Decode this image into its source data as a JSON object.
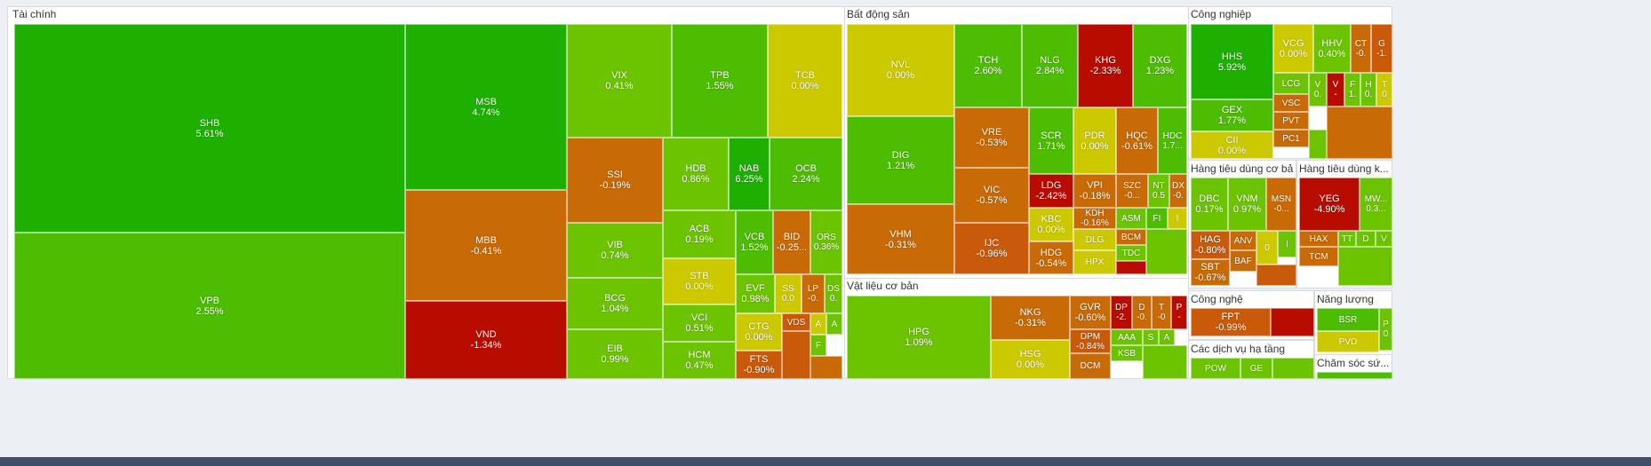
{
  "chart_data": {
    "type": "treemap",
    "title": "",
    "metric": "percent_change",
    "colors": {
      "strong_up": "#1db000",
      "up": "#4cbd00",
      "mild_up": "#6cc400",
      "flat": "#cdc900",
      "mild_down": "#c86a05",
      "down": "#c85a0a",
      "strong_down": "#b80c00"
    },
    "sectors": [
      {
        "name": "Tài chính",
        "stocks": [
          {
            "symbol": "SHB",
            "change": "5.61%",
            "value": 5.61
          },
          {
            "symbol": "VPB",
            "change": "2.55%",
            "value": 2.55
          },
          {
            "symbol": "MSB",
            "change": "4.74%",
            "value": 4.74
          },
          {
            "symbol": "MBB",
            "change": "-0.41%",
            "value": -0.41
          },
          {
            "symbol": "VND",
            "change": "-1.34%",
            "value": -1.34
          },
          {
            "symbol": "VIX",
            "change": "0.41%",
            "value": 0.41
          },
          {
            "symbol": "TPB",
            "change": "1.55%",
            "value": 1.55
          },
          {
            "symbol": "TCB",
            "change": "0.00%",
            "value": 0.0
          },
          {
            "symbol": "SSI",
            "change": "-0.19%",
            "value": -0.19
          },
          {
            "symbol": "HDB",
            "change": "0.86%",
            "value": 0.86
          },
          {
            "symbol": "NAB",
            "change": "6.25%",
            "value": 6.25
          },
          {
            "symbol": "OCB",
            "change": "2.24%",
            "value": 2.24
          },
          {
            "symbol": "VIB",
            "change": "0.74%",
            "value": 0.74
          },
          {
            "symbol": "ACB",
            "change": "0.19%",
            "value": 0.19
          },
          {
            "symbol": "VCB",
            "change": "1.52%",
            "value": 1.52
          },
          {
            "symbol": "BID",
            "change": "-0.25...",
            "value": -0.25
          },
          {
            "symbol": "ORS",
            "change": "0.36%",
            "value": 0.36
          },
          {
            "symbol": "BCG",
            "change": "1.04%",
            "value": 1.04
          },
          {
            "symbol": "STB",
            "change": "0.00%",
            "value": 0.0
          },
          {
            "symbol": "EVF",
            "change": "0.98%",
            "value": 0.98
          },
          {
            "symbol": "SS",
            "change": "0.0",
            "value": 0.0
          },
          {
            "symbol": "LP",
            "change": "-0.",
            "value": -0.1
          },
          {
            "symbol": "DS",
            "change": "0.",
            "value": 0.1
          },
          {
            "symbol": "VCI",
            "change": "0.51%",
            "value": 0.51
          },
          {
            "symbol": "CTG",
            "change": "0.00%",
            "value": 0.0
          },
          {
            "symbol": "VDS",
            "change": "",
            "value": -1.0
          },
          {
            "symbol": "A",
            "change": "",
            "value": 0.0
          },
          {
            "symbol": "A",
            "change": "",
            "value": 0.2
          },
          {
            "symbol": "F",
            "change": "",
            "value": 0.3
          },
          {
            "symbol": "EIB",
            "change": "0.99%",
            "value": 0.99
          },
          {
            "symbol": "HCM",
            "change": "0.47%",
            "value": 0.47
          },
          {
            "symbol": "FTS",
            "change": "-0.90%",
            "value": -0.9
          }
        ]
      },
      {
        "name": "Bất động sản",
        "stocks": [
          {
            "symbol": "NVL",
            "change": "0.00%",
            "value": 0.0
          },
          {
            "symbol": "TCH",
            "change": "2.60%",
            "value": 2.6
          },
          {
            "symbol": "NLG",
            "change": "2.84%",
            "value": 2.84
          },
          {
            "symbol": "KHG",
            "change": "-2.33%",
            "value": -2.33
          },
          {
            "symbol": "DXG",
            "change": "1.23%",
            "value": 1.23
          },
          {
            "symbol": "DIG",
            "change": "1.21%",
            "value": 1.21
          },
          {
            "symbol": "VRE",
            "change": "-0.53%",
            "value": -0.53
          },
          {
            "symbol": "SCR",
            "change": "1.71%",
            "value": 1.71
          },
          {
            "symbol": "PDR",
            "change": "0.00%",
            "value": 0.0
          },
          {
            "symbol": "HQC",
            "change": "-0.61%",
            "value": -0.61
          },
          {
            "symbol": "HDC",
            "change": "1.7...",
            "value": 1.7
          },
          {
            "symbol": "VHM",
            "change": "-0.31%",
            "value": -0.31
          },
          {
            "symbol": "VIC",
            "change": "-0.57%",
            "value": -0.57
          },
          {
            "symbol": "LDG",
            "change": "-2.42%",
            "value": -2.42
          },
          {
            "symbol": "VPI",
            "change": "-0.18%",
            "value": -0.18
          },
          {
            "symbol": "SZC",
            "change": "-0...",
            "value": -0.1
          },
          {
            "symbol": "NT",
            "change": "0.5",
            "value": 0.5
          },
          {
            "symbol": "DX",
            "change": "-0.",
            "value": -0.1
          },
          {
            "symbol": "KBC",
            "change": "0.00%",
            "value": 0.0
          },
          {
            "symbol": "KDH",
            "change": "-0.16%",
            "value": -0.16
          },
          {
            "symbol": "ASM",
            "change": "",
            "value": 0.4
          },
          {
            "symbol": "FI",
            "change": "",
            "value": 1.5
          },
          {
            "symbol": "I",
            "change": "",
            "value": 0.0
          },
          {
            "symbol": "IJC",
            "change": "-0.96%",
            "value": -0.96
          },
          {
            "symbol": "DLG",
            "change": "",
            "value": 0.0
          },
          {
            "symbol": "BCM",
            "change": "",
            "value": -0.3
          },
          {
            "symbol": "HDG",
            "change": "-0.54%",
            "value": -0.54
          },
          {
            "symbol": "TDC",
            "change": "",
            "value": 0.6
          },
          {
            "symbol": "HPX",
            "change": "",
            "value": 0.0
          }
        ]
      },
      {
        "name": "Vật liệu cơ bản",
        "stocks": [
          {
            "symbol": "HPG",
            "change": "1.09%",
            "value": 1.09
          },
          {
            "symbol": "NKG",
            "change": "-0.31%",
            "value": -0.31
          },
          {
            "symbol": "GVR",
            "change": "-0.60%",
            "value": -0.6
          },
          {
            "symbol": "DP",
            "change": "-2.",
            "value": -2.0
          },
          {
            "symbol": "D",
            "change": "-0.",
            "value": -0.1
          },
          {
            "symbol": "T",
            "change": "-0",
            "value": -0.1
          },
          {
            "symbol": "P",
            "change": "-",
            "value": -2.0
          },
          {
            "symbol": "DPM",
            "change": "-0.84%",
            "value": -0.84
          },
          {
            "symbol": "AAA",
            "change": "",
            "value": 0.5
          },
          {
            "symbol": "S",
            "change": "",
            "value": 0.6
          },
          {
            "symbol": "A",
            "change": "",
            "value": 0.8
          },
          {
            "symbol": "HSG",
            "change": "0.00%",
            "value": 0.0
          },
          {
            "symbol": "KSB",
            "change": "",
            "value": 0.7
          },
          {
            "symbol": "DCM",
            "change": "",
            "value": -0.3
          }
        ]
      },
      {
        "name": "Công nghiệp",
        "stocks": [
          {
            "symbol": "HHS",
            "change": "5.92%",
            "value": 5.92
          },
          {
            "symbol": "VCG",
            "change": "0.00%",
            "value": 0.0
          },
          {
            "symbol": "HHV",
            "change": "0.40%",
            "value": 0.4
          },
          {
            "symbol": "CT",
            "change": "-0.",
            "value": -0.1
          },
          {
            "symbol": "G",
            "change": "-1.",
            "value": -1.0
          },
          {
            "symbol": "LCG",
            "change": "",
            "value": 0.3
          },
          {
            "symbol": "V",
            "change": "0.",
            "value": 0.1
          },
          {
            "symbol": "V",
            "change": "-",
            "value": -2.0
          },
          {
            "symbol": "F",
            "change": "1.",
            "value": 1.0
          },
          {
            "symbol": "H",
            "change": "0.",
            "value": 0.1
          },
          {
            "symbol": "T",
            "change": "0",
            "value": 0.0
          },
          {
            "symbol": "GEX",
            "change": "1.77%",
            "value": 1.77
          },
          {
            "symbol": "VSC",
            "change": "",
            "value": -0.5
          },
          {
            "symbol": "PVT",
            "change": "",
            "value": -0.3
          },
          {
            "symbol": "CII",
            "change": "0.00%",
            "value": 0.0
          },
          {
            "symbol": "PC1",
            "change": "",
            "value": -0.4
          }
        ]
      },
      {
        "name": "Hàng tiêu dùng cơ bản",
        "stocks": [
          {
            "symbol": "DBC",
            "change": "0.17%",
            "value": 0.17
          },
          {
            "symbol": "VNM",
            "change": "0.97%",
            "value": 0.97
          },
          {
            "symbol": "MSN",
            "change": "-0...",
            "value": -0.1
          },
          {
            "symbol": "HAG",
            "change": "-0.80%",
            "value": -0.8
          },
          {
            "symbol": "ANV",
            "change": "",
            "value": -0.4
          },
          {
            "symbol": "0",
            "change": "",
            "value": 0.0
          },
          {
            "symbol": "I",
            "change": "",
            "value": 0.3
          },
          {
            "symbol": "BAF",
            "change": "",
            "value": -0.5
          },
          {
            "symbol": "SBT",
            "change": "-0.67%",
            "value": -0.67
          }
        ]
      },
      {
        "name": "Hàng tiêu dùng k...",
        "stocks": [
          {
            "symbol": "YEG",
            "change": "-4.90%",
            "value": -4.9
          },
          {
            "symbol": "MW...",
            "change": "0.3...",
            "value": 0.3
          },
          {
            "symbol": "HAX",
            "change": "",
            "value": -0.4
          },
          {
            "symbol": "TT",
            "change": "",
            "value": 0.5
          },
          {
            "symbol": "D",
            "change": "",
            "value": 0.6
          },
          {
            "symbol": "V",
            "change": "",
            "value": 0.4
          },
          {
            "symbol": "TCM",
            "change": "",
            "value": -0.3
          }
        ]
      },
      {
        "name": "Công nghệ",
        "stocks": [
          {
            "symbol": "FPT",
            "change": "-0.99%",
            "value": -0.99
          }
        ]
      },
      {
        "name": "Năng lượng",
        "stocks": [
          {
            "symbol": "BSR",
            "change": "",
            "value": 2.0
          },
          {
            "symbol": "P",
            "change": "0",
            "value": 0.3
          },
          {
            "symbol": "PVD",
            "change": "",
            "value": 0.0
          }
        ]
      },
      {
        "name": "Các dịch vụ hạ tầng",
        "stocks": [
          {
            "symbol": "POW",
            "change": "",
            "value": 0.6
          },
          {
            "symbol": "GE",
            "change": "",
            "value": 0.5
          }
        ]
      },
      {
        "name": "Chăm sóc sứ...",
        "stocks": []
      }
    ]
  }
}
